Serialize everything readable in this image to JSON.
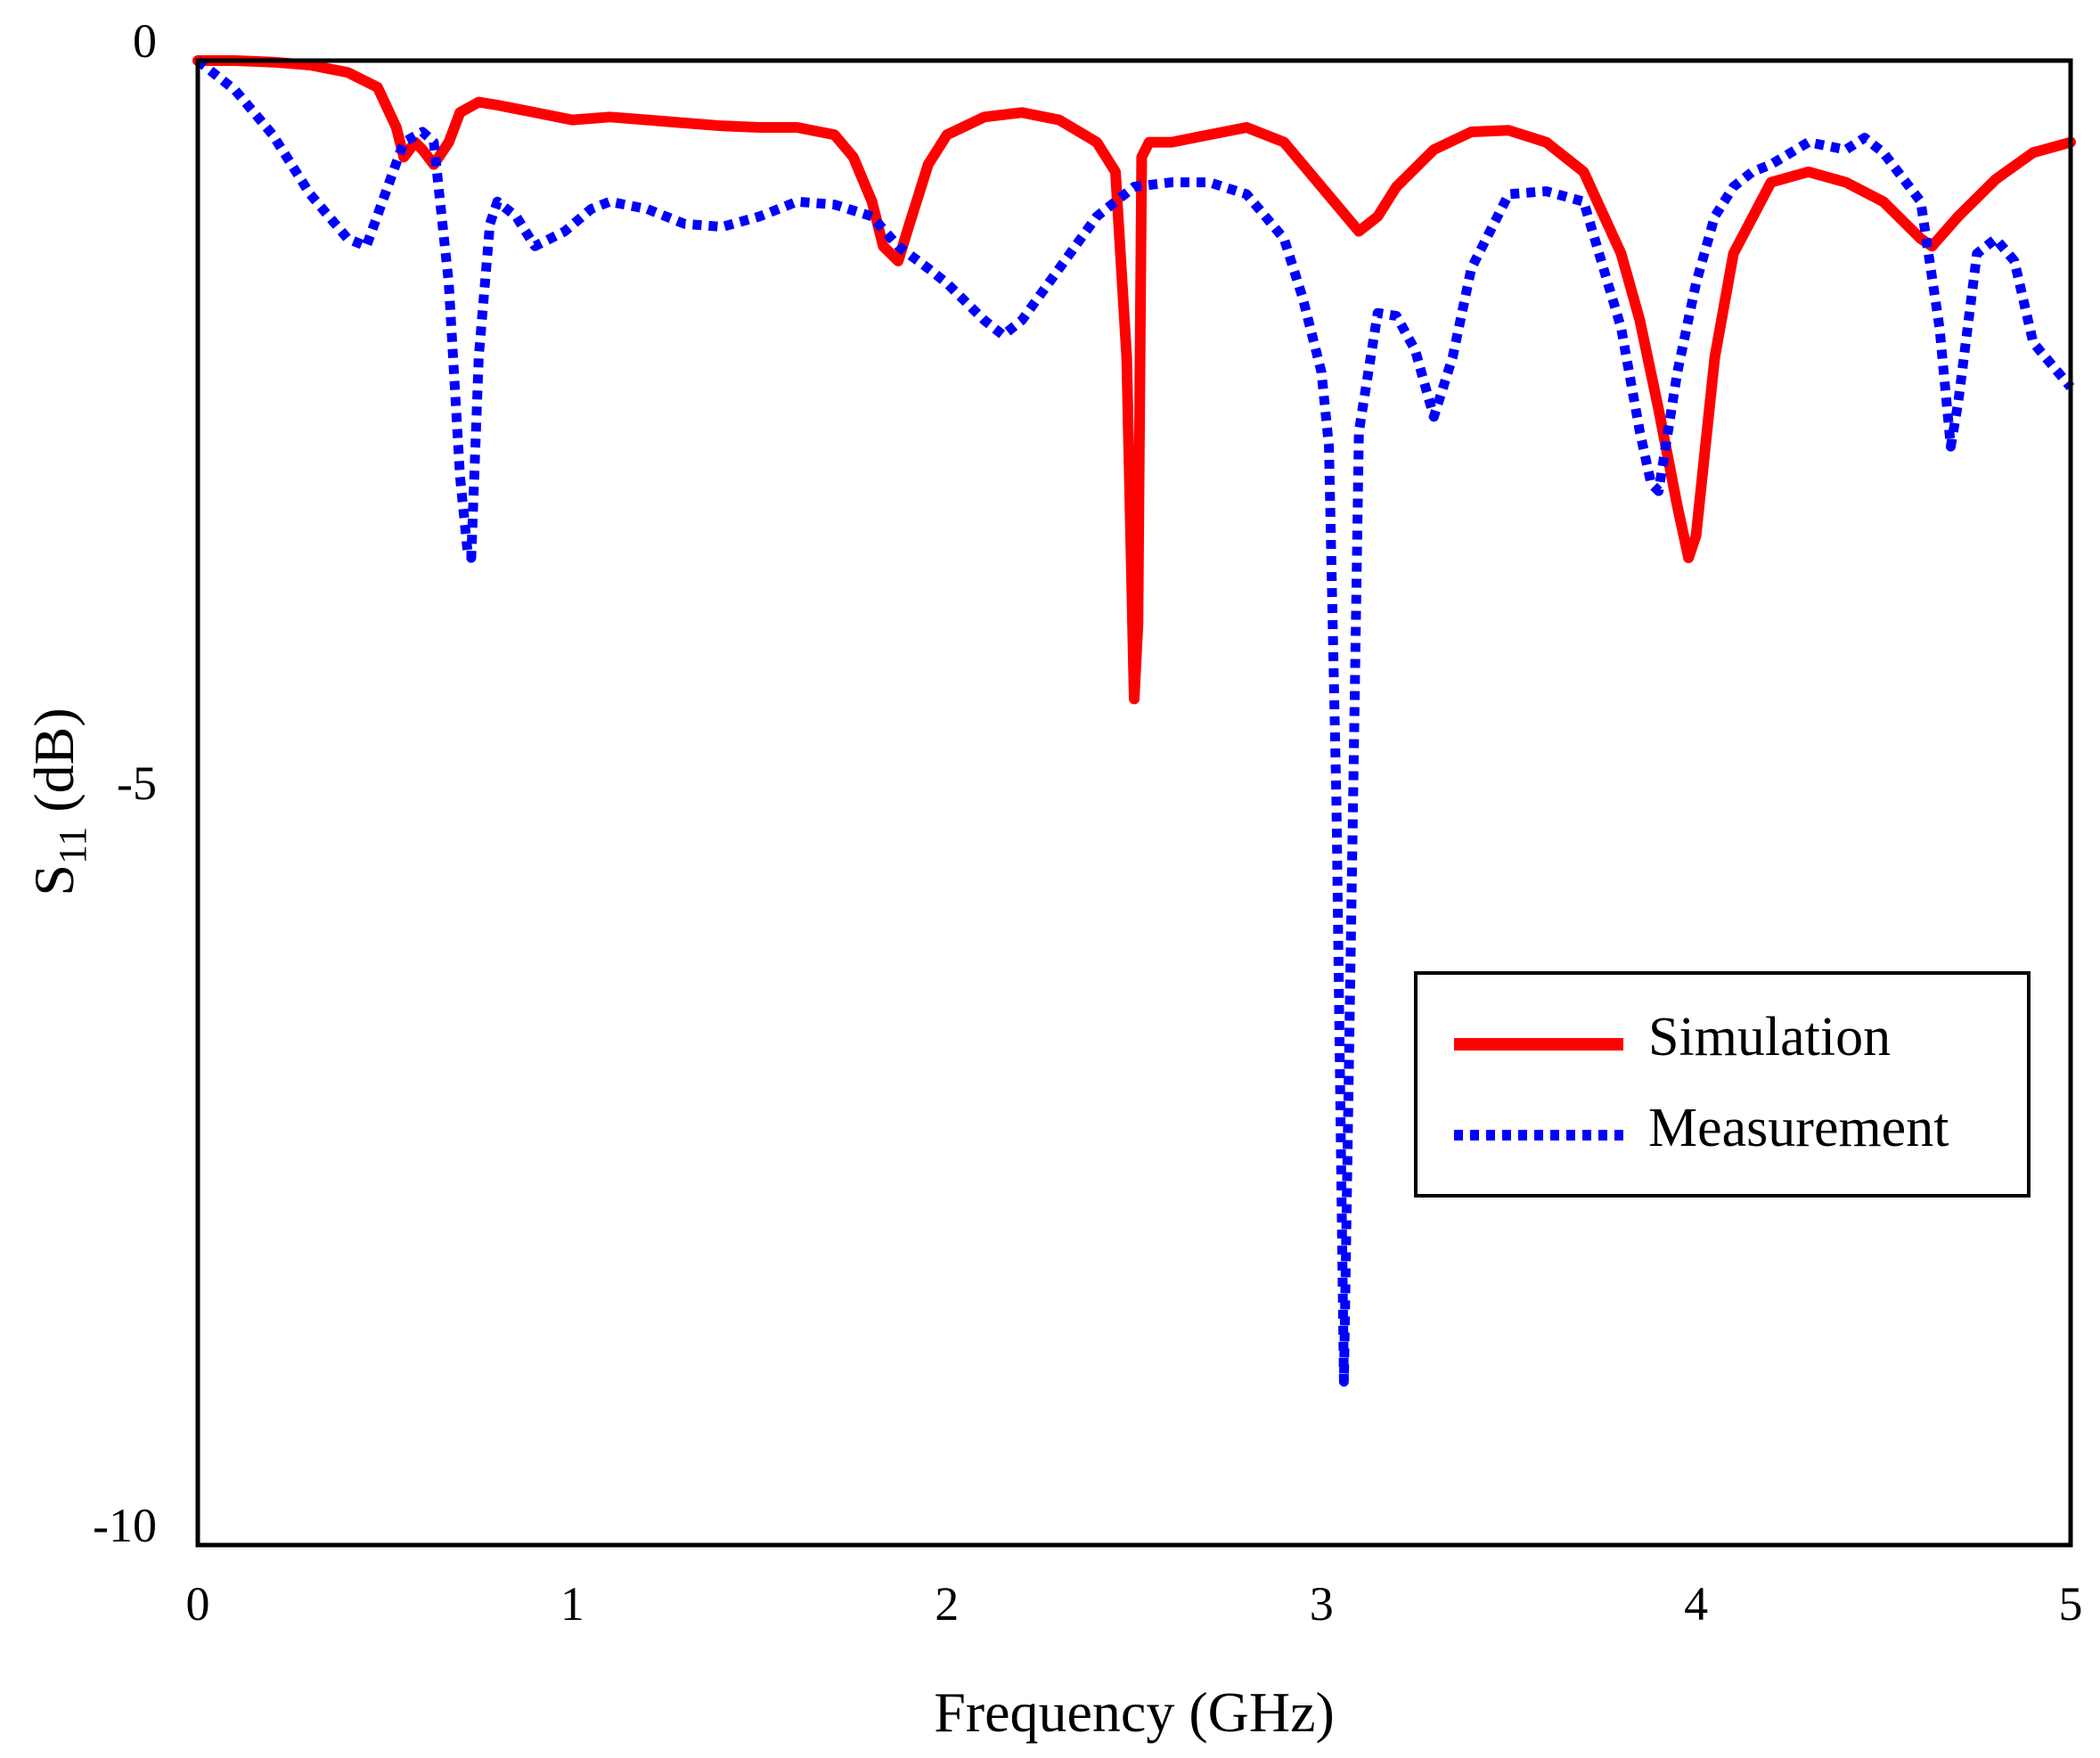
{
  "chart_data": {
    "type": "line",
    "title": "",
    "xlabel": "Frequency (GHz)",
    "ylabel_main": "S",
    "ylabel_sub": "11",
    "ylabel_unit": " (dB)",
    "xlim": [
      0,
      5
    ],
    "ylim": [
      -10,
      0
    ],
    "xticks": [
      0,
      1,
      2,
      3,
      4,
      5
    ],
    "xtick_labels": [
      "0",
      "1",
      "2",
      "3",
      "4",
      "5"
    ],
    "yticks": [
      0,
      -5,
      -10
    ],
    "ytick_labels": [
      "0",
      "-5",
      "-10"
    ],
    "grid": false,
    "legend_position": "right",
    "series": [
      {
        "name": "Simulation",
        "color": "#ff0000",
        "style": "solid",
        "x": [
          0,
          0.1,
          0.2,
          0.3,
          0.4,
          0.48,
          0.53,
          0.55,
          0.58,
          0.6,
          0.63,
          0.67,
          0.7,
          0.75,
          0.8,
          0.9,
          1.0,
          1.1,
          1.2,
          1.3,
          1.4,
          1.5,
          1.6,
          1.7,
          1.75,
          1.8,
          1.83,
          1.87,
          1.9,
          1.95,
          2.0,
          2.1,
          2.2,
          2.3,
          2.4,
          2.45,
          2.48,
          2.5,
          2.51,
          2.52,
          2.54,
          2.6,
          2.7,
          2.8,
          2.9,
          3.0,
          3.05,
          3.1,
          3.15,
          3.2,
          3.3,
          3.4,
          3.5,
          3.6,
          3.7,
          3.8,
          3.85,
          3.9,
          3.95,
          3.98,
          4.0,
          4.05,
          4.1,
          4.2,
          4.3,
          4.4,
          4.5,
          4.6,
          4.63,
          4.7,
          4.8,
          4.9,
          5.0
        ],
        "values": [
          0,
          0,
          -0.01,
          -0.03,
          -0.08,
          -0.18,
          -0.45,
          -0.65,
          -0.55,
          -0.6,
          -0.7,
          -0.55,
          -0.35,
          -0.28,
          -0.3,
          -0.35,
          -0.4,
          -0.38,
          -0.4,
          -0.42,
          -0.44,
          -0.45,
          -0.45,
          -0.5,
          -0.65,
          -0.95,
          -1.25,
          -1.35,
          -1.1,
          -0.7,
          -0.5,
          -0.38,
          -0.35,
          -0.4,
          -0.55,
          -0.75,
          -2.0,
          -4.3,
          -3.8,
          -0.65,
          -0.55,
          -0.55,
          -0.5,
          -0.45,
          -0.55,
          -0.85,
          -1.0,
          -1.15,
          -1.05,
          -0.85,
          -0.6,
          -0.48,
          -0.47,
          -0.55,
          -0.75,
          -1.3,
          -1.75,
          -2.35,
          -3.0,
          -3.35,
          -3.2,
          -2.0,
          -1.3,
          -0.82,
          -0.75,
          -0.82,
          -0.95,
          -1.2,
          -1.25,
          -1.05,
          -0.8,
          -0.62,
          -0.55
        ]
      },
      {
        "name": "Measurement",
        "color": "#0000ff",
        "style": "dotted",
        "x": [
          0,
          0.1,
          0.2,
          0.3,
          0.4,
          0.45,
          0.5,
          0.55,
          0.6,
          0.63,
          0.67,
          0.7,
          0.72,
          0.73,
          0.75,
          0.78,
          0.8,
          0.85,
          0.9,
          0.98,
          1.05,
          1.1,
          1.2,
          1.3,
          1.4,
          1.5,
          1.6,
          1.7,
          1.8,
          1.87,
          1.95,
          2.0,
          2.1,
          2.15,
          2.2,
          2.3,
          2.4,
          2.5,
          2.6,
          2.7,
          2.8,
          2.9,
          2.95,
          3.0,
          3.02,
          3.04,
          3.06,
          3.1,
          3.15,
          3.2,
          3.25,
          3.3,
          3.35,
          3.4,
          3.5,
          3.6,
          3.7,
          3.8,
          3.85,
          3.88,
          3.9,
          3.95,
          4.0,
          4.05,
          4.1,
          4.15,
          4.2,
          4.3,
          4.4,
          4.45,
          4.5,
          4.6,
          4.65,
          4.68,
          4.7,
          4.75,
          4.8,
          4.85,
          4.9,
          5.0
        ],
        "values": [
          0,
          -0.2,
          -0.5,
          -0.9,
          -1.2,
          -1.25,
          -0.9,
          -0.55,
          -0.48,
          -0.55,
          -1.5,
          -2.8,
          -3.3,
          -3.35,
          -2.0,
          -1.1,
          -0.95,
          -1.05,
          -1.25,
          -1.15,
          -1.0,
          -0.95,
          -1.0,
          -1.1,
          -1.12,
          -1.05,
          -0.95,
          -0.97,
          -1.05,
          -1.25,
          -1.4,
          -1.5,
          -1.75,
          -1.85,
          -1.75,
          -1.4,
          -1.05,
          -0.85,
          -0.82,
          -0.82,
          -0.9,
          -1.2,
          -1.6,
          -2.1,
          -2.6,
          -5.0,
          -8.9,
          -2.5,
          -1.7,
          -1.72,
          -1.95,
          -2.4,
          -2.0,
          -1.4,
          -0.9,
          -0.88,
          -0.95,
          -1.8,
          -2.5,
          -2.85,
          -2.9,
          -2.1,
          -1.5,
          -1.05,
          -0.85,
          -0.75,
          -0.7,
          -0.55,
          -0.6,
          -0.52,
          -0.62,
          -0.95,
          -1.8,
          -2.6,
          -2.3,
          -1.3,
          -1.2,
          -1.35,
          -1.9,
          -2.2
        ]
      }
    ]
  }
}
